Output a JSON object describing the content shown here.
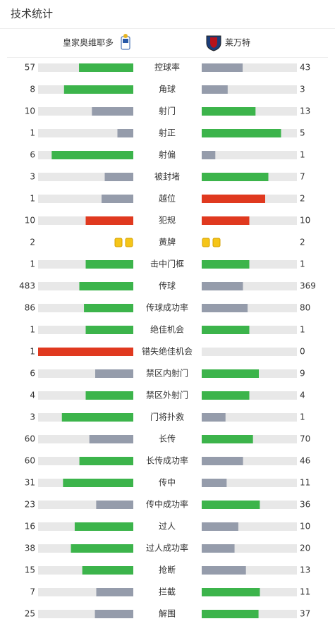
{
  "title": "技术统计",
  "teams": {
    "home": "皇家奥维耶多",
    "away": "莱万特"
  },
  "stats": [
    {
      "label": "控球率",
      "home": 57,
      "away": 43,
      "kind": "bar",
      "colors": [
        "#3cb44b",
        "#959cab"
      ]
    },
    {
      "label": "角球",
      "home": 8,
      "away": 3,
      "kind": "bar",
      "colors": [
        "#3cb44b",
        "#959cab"
      ]
    },
    {
      "label": "射门",
      "home": 10,
      "away": 13,
      "kind": "bar",
      "colors": [
        "#959cab",
        "#3cb44b"
      ]
    },
    {
      "label": "射正",
      "home": 1,
      "away": 5,
      "kind": "bar",
      "colors": [
        "#959cab",
        "#3cb44b"
      ]
    },
    {
      "label": "射偏",
      "home": 6,
      "away": 1,
      "kind": "bar",
      "colors": [
        "#3cb44b",
        "#959cab"
      ]
    },
    {
      "label": "被封堵",
      "home": 3,
      "away": 7,
      "kind": "bar",
      "colors": [
        "#959cab",
        "#3cb44b"
      ]
    },
    {
      "label": "越位",
      "home": 1,
      "away": 2,
      "kind": "bar",
      "colors": [
        "#959cab",
        "#e0391f"
      ]
    },
    {
      "label": "犯规",
      "home": 10,
      "away": 10,
      "kind": "bar",
      "colors": [
        "#e0391f",
        "#e0391f"
      ]
    },
    {
      "label": "黄牌",
      "home": 2,
      "away": 2,
      "kind": "cards",
      "colors": [
        "#f5c518",
        "#f5c518"
      ]
    },
    {
      "label": "击中门框",
      "home": 1,
      "away": 1,
      "kind": "bar",
      "colors": [
        "#3cb44b",
        "#3cb44b"
      ]
    },
    {
      "label": "传球",
      "home": 483,
      "away": 369,
      "kind": "bar",
      "colors": [
        "#3cb44b",
        "#959cab"
      ]
    },
    {
      "label": "传球成功率",
      "home": 86,
      "away": 80,
      "kind": "bar",
      "colors": [
        "#3cb44b",
        "#959cab"
      ]
    },
    {
      "label": "绝佳机会",
      "home": 1,
      "away": 1,
      "kind": "bar",
      "colors": [
        "#3cb44b",
        "#3cb44b"
      ]
    },
    {
      "label": "错失绝佳机会",
      "home": 1,
      "away": 0,
      "kind": "bar",
      "colors": [
        "#e0391f",
        "#959cab"
      ]
    },
    {
      "label": "禁区内射门",
      "home": 6,
      "away": 9,
      "kind": "bar",
      "colors": [
        "#959cab",
        "#3cb44b"
      ]
    },
    {
      "label": "禁区外射门",
      "home": 4,
      "away": 4,
      "kind": "bar",
      "colors": [
        "#3cb44b",
        "#3cb44b"
      ]
    },
    {
      "label": "门将扑救",
      "home": 3,
      "away": 1,
      "kind": "bar",
      "colors": [
        "#3cb44b",
        "#959cab"
      ]
    },
    {
      "label": "长传",
      "home": 60,
      "away": 70,
      "kind": "bar",
      "colors": [
        "#959cab",
        "#3cb44b"
      ]
    },
    {
      "label": "长传成功率",
      "home": 60,
      "away": 46,
      "kind": "bar",
      "colors": [
        "#3cb44b",
        "#959cab"
      ]
    },
    {
      "label": "传中",
      "home": 31,
      "away": 11,
      "kind": "bar",
      "colors": [
        "#3cb44b",
        "#959cab"
      ]
    },
    {
      "label": "传中成功率",
      "home": 23,
      "away": 36,
      "kind": "bar",
      "colors": [
        "#959cab",
        "#3cb44b"
      ]
    },
    {
      "label": "过人",
      "home": 16,
      "away": 10,
      "kind": "bar",
      "colors": [
        "#3cb44b",
        "#959cab"
      ]
    },
    {
      "label": "过人成功率",
      "home": 38,
      "away": 20,
      "kind": "bar",
      "colors": [
        "#3cb44b",
        "#959cab"
      ]
    },
    {
      "label": "抢断",
      "home": 15,
      "away": 13,
      "kind": "bar",
      "colors": [
        "#3cb44b",
        "#959cab"
      ]
    },
    {
      "label": "拦截",
      "home": 7,
      "away": 11,
      "kind": "bar",
      "colors": [
        "#959cab",
        "#3cb44b"
      ]
    },
    {
      "label": "解围",
      "home": 25,
      "away": 37,
      "kind": "bar",
      "colors": [
        "#959cab",
        "#3cb44b"
      ]
    }
  ]
}
